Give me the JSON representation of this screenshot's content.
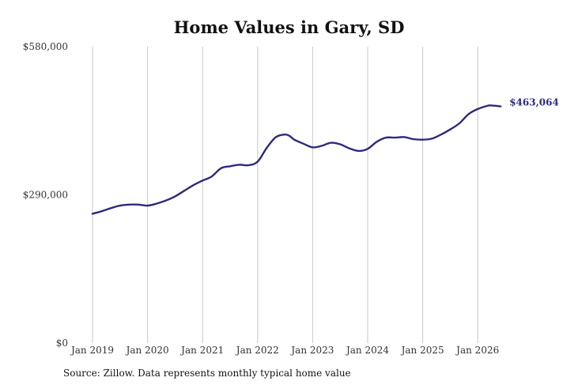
{
  "chart_data": {
    "type": "line",
    "title": "Home Values in Gary, SD",
    "xlabel": "",
    "ylabel": "",
    "ylim": [
      0,
      580000
    ],
    "y_ticks": [
      {
        "value": 0,
        "label": "$0"
      },
      {
        "value": 290000,
        "label": "$290,000"
      },
      {
        "value": 580000,
        "label": "$580,000"
      }
    ],
    "x_ticks": [
      {
        "value": "2019-01",
        "label": "Jan 2019"
      },
      {
        "value": "2020-01",
        "label": "Jan 2020"
      },
      {
        "value": "2021-01",
        "label": "Jan 2021"
      },
      {
        "value": "2022-01",
        "label": "Jan 2022"
      },
      {
        "value": "2023-01",
        "label": "Jan 2023"
      },
      {
        "value": "2024-01",
        "label": "Jan 2024"
      },
      {
        "value": "2025-01",
        "label": "Jan 2025"
      },
      {
        "value": "2026-01",
        "label": "Jan 2026"
      }
    ],
    "grid": "vertical",
    "line_color": "#2d2a7f",
    "series": [
      {
        "name": "",
        "x": [
          "2019-01",
          "2019-03",
          "2019-05",
          "2019-07",
          "2019-09",
          "2019-11",
          "2020-01",
          "2020-03",
          "2020-05",
          "2020-07",
          "2020-09",
          "2020-11",
          "2021-01",
          "2021-03",
          "2021-05",
          "2021-07",
          "2021-09",
          "2021-11",
          "2022-01",
          "2022-03",
          "2022-05",
          "2022-07",
          "2022-08",
          "2022-09",
          "2022-11",
          "2023-01",
          "2023-03",
          "2023-05",
          "2023-07",
          "2023-09",
          "2023-11",
          "2024-01",
          "2024-03",
          "2024-05",
          "2024-07",
          "2024-09",
          "2024-11",
          "2025-01",
          "2025-03",
          "2025-05",
          "2025-07",
          "2025-09",
          "2025-11",
          "2026-01",
          "2026-03",
          "2026-04",
          "2026-06"
        ],
        "values": [
          253000,
          258000,
          264000,
          269000,
          271000,
          271000,
          269000,
          273000,
          279000,
          287000,
          298000,
          309000,
          318000,
          326000,
          342000,
          346000,
          349000,
          348000,
          355000,
          382000,
          403000,
          408000,
          405000,
          398000,
          390000,
          383000,
          386000,
          392000,
          389000,
          381000,
          376000,
          380000,
          394000,
          402000,
          402000,
          403000,
          399000,
          398000,
          400000,
          408000,
          418000,
          430000,
          448000,
          458000,
          464000,
          465000,
          463064
        ]
      }
    ],
    "end_value_label": "$463,064",
    "source_note": "Source: Zillow. Data represents monthly typical home value"
  }
}
